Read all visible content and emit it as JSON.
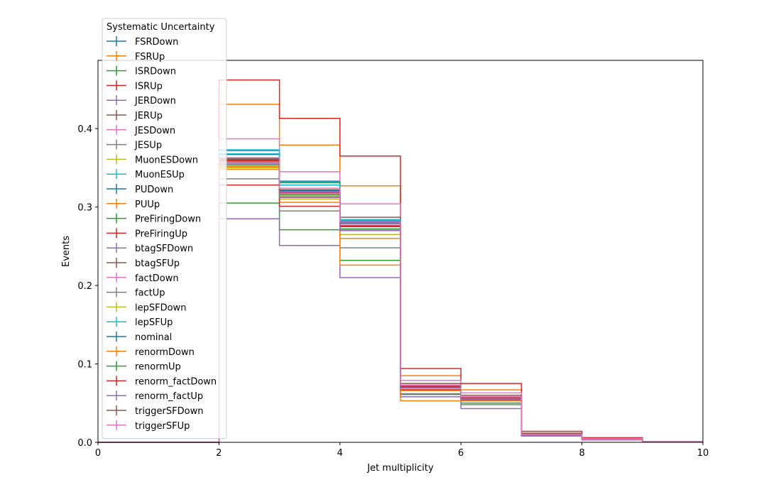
{
  "chart_data": {
    "type": "line",
    "step": true,
    "xlabel": "Jet multiplicity",
    "ylabel": "Events",
    "xlim": [
      0,
      10
    ],
    "ylim": [
      0,
      0.487
    ],
    "xticks": [
      0,
      2,
      4,
      6,
      8,
      10
    ],
    "yticks": [
      0.0,
      0.1,
      0.2,
      0.3,
      0.4
    ],
    "grid": false,
    "legend": {
      "title": "Systematic Uncertainty",
      "placement": "top-left"
    },
    "bin_edges": [
      0,
      1,
      2,
      3,
      4,
      5,
      6,
      7,
      8,
      9,
      10
    ],
    "series": [
      {
        "name": "FSRDown",
        "color": "#1f77b4",
        "values": [
          0,
          0,
          0.372,
          0.333,
          0.282,
          0.073,
          0.058,
          0.01,
          0.004,
          0.001
        ]
      },
      {
        "name": "FSRUp",
        "color": "#ff7f0e",
        "values": [
          0,
          0,
          0.431,
          0.379,
          0.327,
          0.085,
          0.067,
          0.012,
          0.005,
          0.001
        ]
      },
      {
        "name": "ISRDown",
        "color": "#2ca02c",
        "values": [
          0,
          0,
          0.305,
          0.271,
          0.232,
          0.061,
          0.05,
          0.009,
          0.004,
          0.001
        ]
      },
      {
        "name": "ISRUp",
        "color": "#d62728",
        "values": [
          0,
          0,
          0.462,
          0.413,
          0.365,
          0.094,
          0.075,
          0.014,
          0.006,
          0.001
        ]
      },
      {
        "name": "JERDown",
        "color": "#9467bd",
        "values": [
          0,
          0,
          0.357,
          0.316,
          0.275,
          0.07,
          0.057,
          0.01,
          0.004,
          0.001
        ]
      },
      {
        "name": "JERUp",
        "color": "#8c564b",
        "values": [
          0,
          0,
          0.357,
          0.318,
          0.276,
          0.071,
          0.057,
          0.01,
          0.004,
          0.001
        ]
      },
      {
        "name": "JESDown",
        "color": "#e377c2",
        "values": [
          0,
          0,
          0.387,
          0.345,
          0.304,
          0.079,
          0.063,
          0.011,
          0.005,
          0.001
        ]
      },
      {
        "name": "JESUp",
        "color": "#7f7f7f",
        "values": [
          0,
          0,
          0.336,
          0.295,
          0.248,
          0.062,
          0.048,
          0.009,
          0.004,
          0.001
        ]
      },
      {
        "name": "MuonESDown",
        "color": "#bcbd22",
        "values": [
          0,
          0,
          0.35,
          0.31,
          0.265,
          0.067,
          0.054,
          0.01,
          0.004,
          0.001
        ]
      },
      {
        "name": "MuonESUp",
        "color": "#17becf",
        "values": [
          0,
          0,
          0.373,
          0.332,
          0.283,
          0.073,
          0.058,
          0.01,
          0.004,
          0.001
        ]
      },
      {
        "name": "PUDown",
        "color": "#1f77b4",
        "values": [
          0,
          0,
          0.367,
          0.328,
          0.28,
          0.072,
          0.057,
          0.01,
          0.004,
          0.001
        ]
      },
      {
        "name": "PUUp",
        "color": "#ff7f0e",
        "values": [
          0,
          0,
          0.348,
          0.306,
          0.26,
          0.066,
          0.053,
          0.01,
          0.004,
          0.001
        ]
      },
      {
        "name": "PreFiringDown",
        "color": "#2ca02c",
        "values": [
          0,
          0,
          0.362,
          0.331,
          0.284,
          0.073,
          0.058,
          0.01,
          0.004,
          0.001
        ]
      },
      {
        "name": "PreFiringUp",
        "color": "#d62728",
        "values": [
          0,
          0,
          0.328,
          0.301,
          0.275,
          0.067,
          0.054,
          0.01,
          0.004,
          0.001
        ]
      },
      {
        "name": "btagSFDown",
        "color": "#9467bd",
        "values": [
          0,
          0,
          0.285,
          0.251,
          0.21,
          0.058,
          0.043,
          0.008,
          0.003,
          0.001
        ]
      },
      {
        "name": "btagSFUp",
        "color": "#8c564b",
        "values": [
          0,
          0,
          0.352,
          0.32,
          0.287,
          0.075,
          0.06,
          0.011,
          0.004,
          0.001
        ]
      },
      {
        "name": "factDown",
        "color": "#e377c2",
        "values": [
          0,
          0,
          0.358,
          0.319,
          0.277,
          0.071,
          0.057,
          0.01,
          0.004,
          0.001
        ]
      },
      {
        "name": "factUp",
        "color": "#7f7f7f",
        "values": [
          0,
          0,
          0.352,
          0.314,
          0.272,
          0.07,
          0.056,
          0.01,
          0.004,
          0.001
        ]
      },
      {
        "name": "lepSFDown",
        "color": "#bcbd22",
        "values": [
          0,
          0,
          0.351,
          0.313,
          0.271,
          0.069,
          0.055,
          0.01,
          0.004,
          0.001
        ]
      },
      {
        "name": "lepSFUp",
        "color": "#17becf",
        "values": [
          0,
          0,
          0.368,
          0.328,
          0.284,
          0.073,
          0.058,
          0.01,
          0.004,
          0.001
        ]
      },
      {
        "name": "nominal",
        "color": "#1f77b4",
        "values": [
          0,
          0,
          0.36,
          0.321,
          0.279,
          0.072,
          0.057,
          0.01,
          0.004,
          0.001
        ]
      },
      {
        "name": "renormDown",
        "color": "#ff7f0e",
        "values": [
          0,
          0,
          0.352,
          0.322,
          0.226,
          0.053,
          0.053,
          0.01,
          0.004,
          0.001
        ]
      },
      {
        "name": "renormUp",
        "color": "#2ca02c",
        "values": [
          0,
          0,
          0.354,
          0.316,
          0.272,
          0.069,
          0.055,
          0.01,
          0.004,
          0.001
        ]
      },
      {
        "name": "renorm_factDown",
        "color": "#d62728",
        "values": [
          0,
          0,
          0.359,
          0.318,
          0.276,
          0.071,
          0.057,
          0.01,
          0.004,
          0.001
        ]
      },
      {
        "name": "renorm_factUp",
        "color": "#9467bd",
        "values": [
          0,
          0,
          0.355,
          0.312,
          0.27,
          0.069,
          0.055,
          0.01,
          0.004,
          0.001
        ]
      },
      {
        "name": "triggerSFDown",
        "color": "#8c564b",
        "values": [
          0,
          0,
          0.361,
          0.322,
          0.28,
          0.072,
          0.058,
          0.01,
          0.004,
          0.001
        ]
      },
      {
        "name": "triggerSFUp",
        "color": "#e377c2",
        "values": [
          0,
          0,
          0.363,
          0.324,
          0.281,
          0.073,
          0.058,
          0.01,
          0.004,
          0.001
        ]
      }
    ]
  }
}
